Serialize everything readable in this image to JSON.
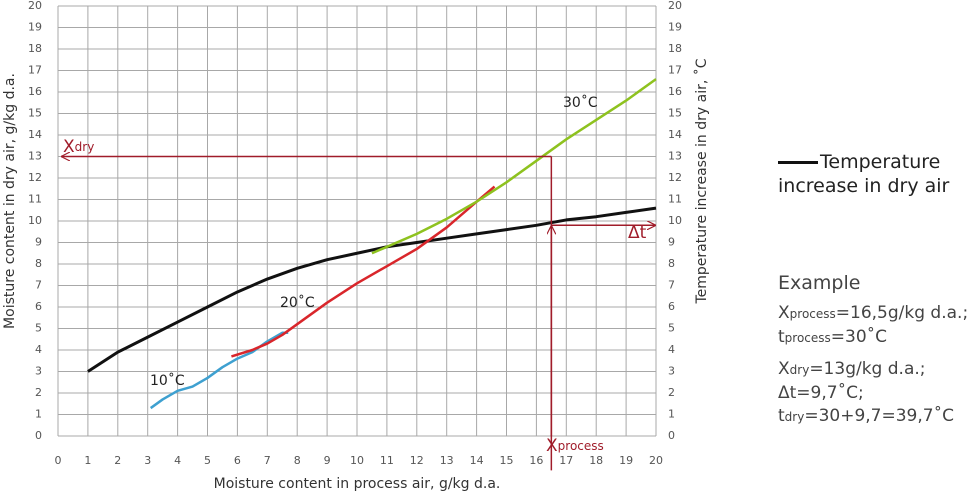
{
  "chart_data": {
    "type": "line",
    "xlabel": "Moisture content in process air, g/kg d.a.",
    "ylabel": "Moisture content in dry air, g/kg d.a.",
    "y2label": "Temperature increase in dry air, ˚C",
    "xlim": [
      0,
      20
    ],
    "ylim": [
      0,
      20
    ],
    "y2lim": [
      0,
      20
    ],
    "xticks": [
      0,
      1,
      2,
      3,
      4,
      5,
      6,
      7,
      8,
      9,
      10,
      11,
      12,
      13,
      14,
      15,
      16,
      17,
      18,
      19,
      20
    ],
    "yticks": [
      0,
      1,
      2,
      3,
      4,
      5,
      6,
      7,
      8,
      9,
      10,
      11,
      12,
      13,
      14,
      15,
      16,
      17,
      18,
      19,
      20
    ],
    "y2ticks": [
      0,
      1,
      2,
      3,
      4,
      5,
      6,
      7,
      8,
      9,
      10,
      11,
      12,
      13,
      14,
      15,
      16,
      17,
      18,
      19,
      20
    ],
    "grid": true,
    "series": [
      {
        "name": "Temperature increase in dry air",
        "color": "#111111",
        "axis": "y2",
        "legend": true,
        "x": [
          1,
          2,
          3,
          4,
          5,
          6,
          7,
          8,
          9,
          10,
          11,
          12,
          13,
          14,
          15,
          16,
          17,
          18,
          19,
          20
        ],
        "values": [
          3,
          3.9,
          4.6,
          5.3,
          6,
          6.7,
          7.3,
          7.8,
          8.2,
          8.5,
          8.8,
          9,
          9.2,
          9.4,
          9.6,
          9.8,
          10.05,
          10.2,
          10.4,
          10.6
        ]
      },
      {
        "name": "10˚C",
        "color": "#3ea0d0",
        "x": [
          3.1,
          3.5,
          4,
          4.5,
          5,
          5.5,
          6,
          6.5,
          7,
          7.5,
          7.7
        ],
        "values": [
          1.3,
          1.7,
          2.1,
          2.3,
          2.7,
          3.2,
          3.6,
          3.9,
          4.4,
          4.8,
          4.8
        ]
      },
      {
        "name": "20˚C",
        "color": "#d9262b",
        "x": [
          5.8,
          6.5,
          7,
          7.5,
          8,
          9,
          10,
          11,
          12,
          13,
          14,
          14.6
        ],
        "values": [
          3.7,
          4,
          4.3,
          4.7,
          5.2,
          6.2,
          7.1,
          7.9,
          8.7,
          9.7,
          10.9,
          11.6
        ]
      },
      {
        "name": "30˚C",
        "color": "#8ec21f",
        "x": [
          10.5,
          11,
          12,
          13,
          14,
          15,
          16,
          17,
          18,
          19,
          20
        ],
        "values": [
          8.5,
          8.8,
          9.4,
          10.1,
          10.9,
          11.8,
          12.8,
          13.8,
          14.7,
          15.6,
          16.6
        ]
      }
    ],
    "arrow_color": "#a01c2a",
    "arrows": [
      {
        "x": [
          16.5,
          0.1
        ],
        "y": [
          13,
          13
        ],
        "head": true,
        "label": [
          {
            "text": "X"
          },
          {
            "text": "dry",
            "sub": true
          }
        ]
      },
      {
        "x": [
          16.5,
          16.5
        ],
        "y": [
          13,
          -1.6
        ],
        "head": false,
        "label": [
          {
            "text": "X"
          },
          {
            "text": "process",
            "sub": true
          }
        ]
      },
      {
        "x": [
          16.5,
          16.5
        ],
        "y": [
          0,
          9.8
        ],
        "head": true
      },
      {
        "x": [
          16.5,
          20
        ],
        "y": [
          9.8,
          9.8
        ],
        "head": true,
        "label": [
          {
            "text": "Δt"
          }
        ]
      }
    ]
  },
  "example": {
    "title": "Example",
    "paragraphs": [
      [
        [
          {
            "text": "X"
          },
          {
            "text": "process",
            "sub": true
          },
          {
            "text": "=16,5g/kg d.a.;"
          }
        ],
        [
          {
            "text": "t"
          },
          {
            "text": "process",
            "sub": true
          },
          {
            "text": "=30˚C"
          }
        ]
      ],
      [
        [
          {
            "text": "X"
          },
          {
            "text": "dry",
            "sub": true
          },
          {
            "text": "=13g/kg d.a.;"
          }
        ],
        [
          {
            "text": "Δt=9,7˚C;"
          }
        ],
        [
          {
            "text": "t"
          },
          {
            "text": "dry",
            "sub": true
          },
          {
            "text": "=30+9,7=39,7˚C"
          }
        ]
      ]
    ]
  }
}
